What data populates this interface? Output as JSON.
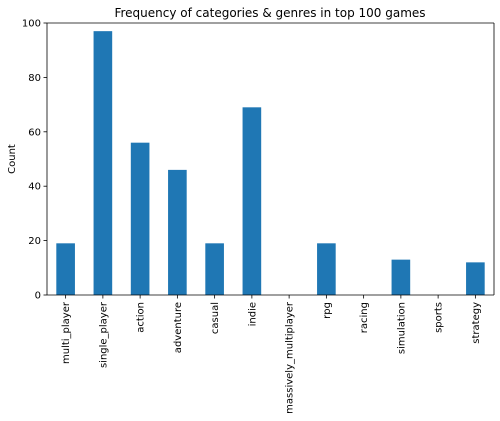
{
  "chart_data": {
    "type": "bar",
    "title": "Frequency of categories & genres in top 100 games",
    "xlabel": "",
    "ylabel": "Count",
    "categories": [
      "multi_player",
      "single_player",
      "action",
      "adventure",
      "casual",
      "indie",
      "massively_multiplayer",
      "rpg",
      "racing",
      "simulation",
      "sports",
      "strategy"
    ],
    "values": [
      19,
      97,
      56,
      46,
      19,
      69,
      0,
      19,
      0,
      13,
      0,
      12
    ],
    "ylim": [
      0,
      100
    ],
    "yticks": [
      0,
      20,
      40,
      60,
      80,
      100
    ],
    "grid": false,
    "bar_color": "#1f77b4"
  }
}
